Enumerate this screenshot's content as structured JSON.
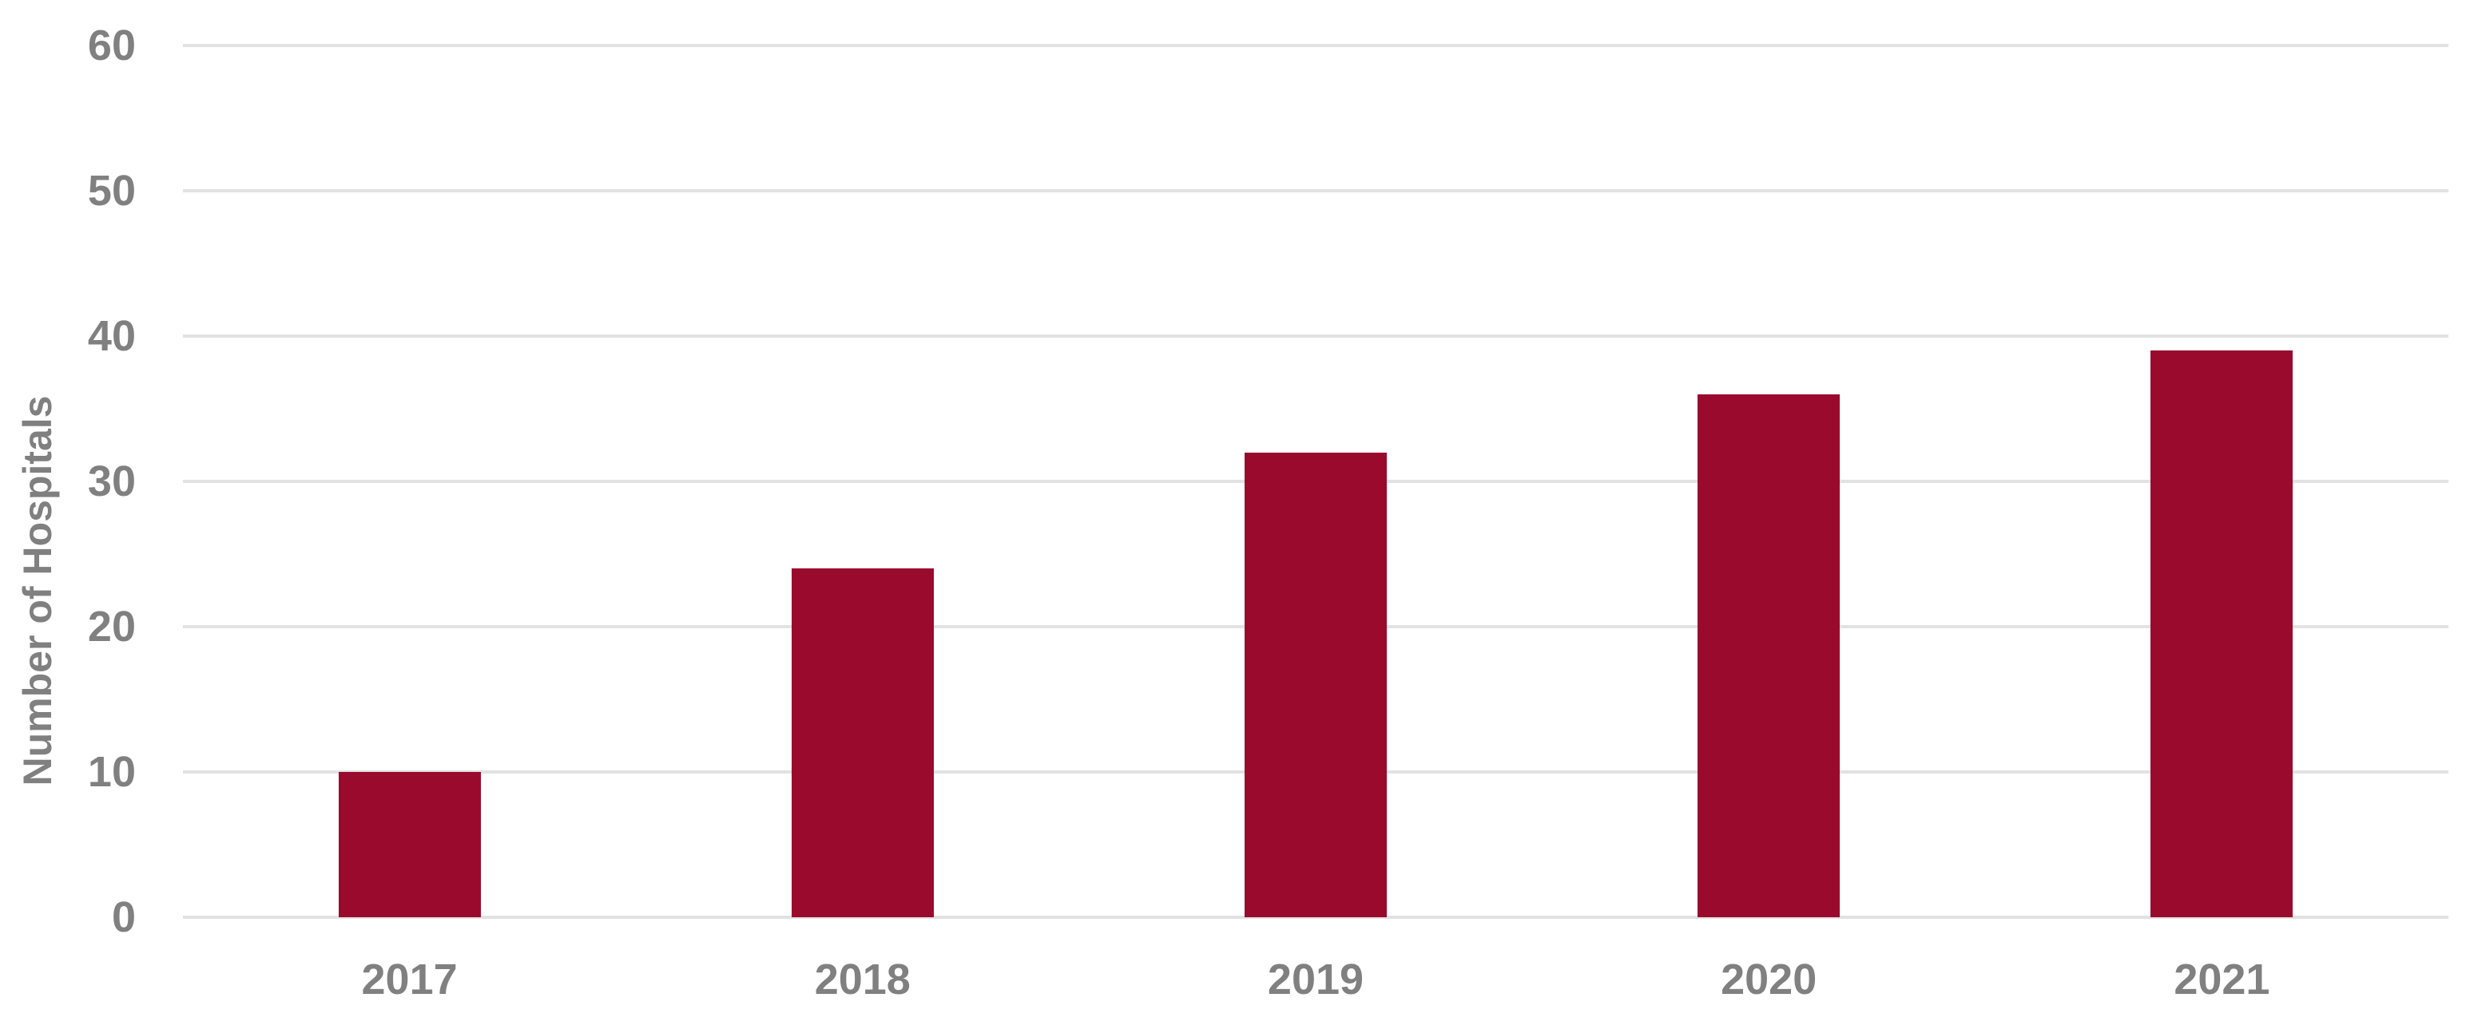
{
  "chart_data": {
    "type": "bar",
    "categories": [
      "2017",
      "2018",
      "2019",
      "2020",
      "2021"
    ],
    "values": [
      10,
      24,
      32,
      36,
      39
    ],
    "title": "",
    "xlabel": "",
    "ylabel": "Number of Hospitals",
    "ylim": [
      0,
      60
    ],
    "yticks": [
      0,
      10,
      20,
      30,
      40,
      50,
      60
    ],
    "grid": "horizontal",
    "legend_position": "none",
    "colors": {
      "bar": "#9A0A2D",
      "axis_label": "#808080",
      "gridline": "#E2E2E2",
      "background": "#FFFFFF"
    }
  }
}
